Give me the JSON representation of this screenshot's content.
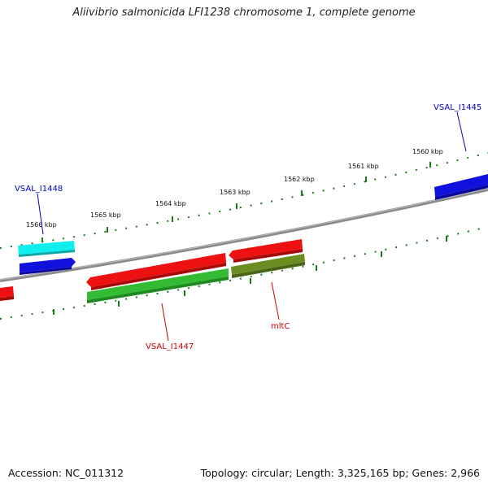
{
  "title": "Aliivibrio salmonicida LFI1238 chromosome 1, complete genome",
  "footer": {
    "accession": "Accession: NC_011312",
    "summary": "Topology: circular; Length: 3,325,165 bp; Genes: 2,966"
  },
  "scale_labels": [
    "1566 kbp",
    "1565 kbp",
    "1564 kbp",
    "1563 kbp",
    "1562 kbp",
    "1561 kbp",
    "1560 kbp"
  ],
  "gene_labels": [
    {
      "text": "VSAL_I1448",
      "color": "#0000cc"
    },
    {
      "text": "VSAL_I1445",
      "color": "#0000cc"
    },
    {
      "text": "VSAL_I1447",
      "color": "#cc0000"
    },
    {
      "text": "mltC",
      "color": "#cc0000"
    }
  ],
  "colors": {
    "backbone": "#888888",
    "ticks": "#1a7a1a",
    "red": "#ee1111",
    "green": "#33bb33",
    "olive": "#6b8e23",
    "blue": "#1111dd",
    "cyan": "#11eeee"
  }
}
